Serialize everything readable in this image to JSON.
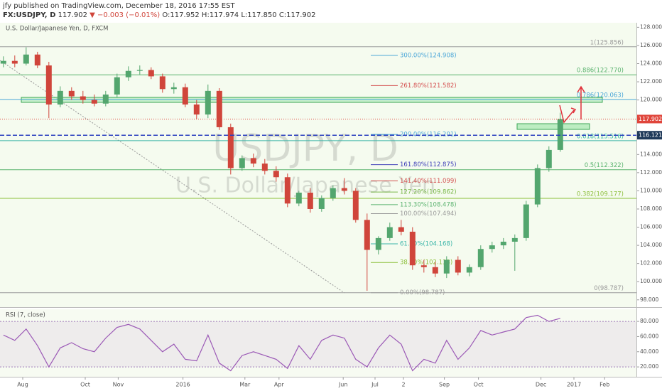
{
  "header": {
    "publisher": "jfy published on TradingView.com, December 18, 2016 17:55 EST",
    "symbol": "FX:USDJPY, D",
    "last": "117.902",
    "change": "▼ −0.003 (−0.01%)",
    "ohlc": "O:117.952 H:117.974 L:117.850 C:117.902"
  },
  "chart_data": [
    {
      "type": "candlestick",
      "title": "U.S. Dollar/Japanese Yen, D, FXCM",
      "watermark": [
        "USDJPY, D",
        "U.S. Dollar/Japanese Yen"
      ],
      "x": [
        0,
        1,
        2,
        3,
        4,
        5,
        6,
        7,
        8,
        9,
        10,
        11,
        12,
        13,
        14,
        15,
        16,
        17,
        18,
        19,
        20,
        21,
        22,
        23,
        24,
        25,
        26,
        27,
        28,
        29,
        30,
        31,
        32,
        33,
        34,
        35,
        36,
        37,
        38,
        39,
        40,
        41,
        42,
        43,
        44,
        45,
        46,
        47,
        48,
        49
      ],
      "open": [
        124.0,
        124.3,
        124.0,
        125.0,
        123.8,
        119.5,
        121.0,
        120.4,
        120.0,
        119.6,
        120.6,
        122.5,
        123.2,
        123.3,
        122.6,
        121.2,
        121.4,
        119.5,
        118.4,
        121.0,
        117.0,
        112.5,
        113.6,
        113.0,
        112.2,
        111.5,
        108.6,
        109.8,
        108.0,
        109.2,
        110.3,
        110.0,
        106.8,
        103.5,
        104.8,
        106.0,
        105.5,
        101.8,
        101.6,
        100.9,
        102.4,
        101.0,
        101.6,
        103.6,
        104.0,
        104.4,
        104.8,
        108.5,
        112.5,
        114.5
      ],
      "high": [
        124.8,
        124.9,
        125.8,
        125.3,
        124.2,
        121.5,
        121.4,
        121.0,
        120.6,
        121.0,
        122.9,
        123.7,
        123.8,
        123.6,
        122.9,
        121.9,
        121.8,
        120.0,
        121.7,
        121.3,
        117.4,
        113.9,
        114.1,
        113.5,
        112.7,
        111.9,
        110.0,
        110.3,
        109.5,
        110.6,
        111.4,
        110.3,
        107.5,
        105.0,
        106.5,
        106.8,
        106.0,
        102.4,
        102.2,
        102.8,
        102.8,
        101.9,
        104.0,
        104.4,
        104.8,
        105.2,
        108.9,
        112.9,
        114.9,
        118.6
      ],
      "low": [
        123.6,
        123.6,
        123.8,
        123.5,
        118.0,
        119.2,
        120.0,
        119.6,
        119.3,
        119.3,
        120.3,
        122.1,
        122.8,
        122.3,
        120.8,
        120.7,
        119.2,
        117.9,
        118.0,
        116.7,
        111.8,
        112.2,
        112.6,
        111.8,
        111.0,
        108.2,
        108.3,
        107.6,
        107.7,
        108.9,
        109.6,
        106.5,
        99.0,
        103.0,
        104.5,
        105.1,
        101.3,
        101.0,
        100.5,
        100.4,
        100.7,
        100.6,
        101.3,
        103.2,
        103.6,
        101.2,
        104.5,
        108.2,
        112.1,
        114.3
      ],
      "close": [
        124.3,
        124.0,
        125.0,
        123.8,
        119.5,
        121.0,
        120.4,
        120.0,
        119.6,
        120.6,
        122.5,
        123.2,
        123.3,
        122.6,
        121.2,
        121.4,
        119.5,
        118.4,
        121.0,
        117.0,
        112.5,
        113.6,
        113.0,
        112.2,
        111.5,
        108.6,
        109.8,
        108.0,
        109.2,
        110.3,
        110.0,
        106.8,
        103.5,
        104.8,
        106.0,
        105.5,
        101.8,
        101.6,
        100.9,
        102.4,
        101.0,
        101.6,
        103.6,
        104.0,
        104.4,
        104.8,
        108.5,
        112.5,
        114.5,
        117.9
      ],
      "up_color": "#53a66e",
      "down_color": "#d0453b",
      "xlim": [
        -0.3,
        55.7
      ],
      "xticks": [
        {
          "value": 1.7,
          "label": "Aug"
        },
        {
          "value": 7.2,
          "label": "Oct"
        },
        {
          "value": 10.1,
          "label": "Nov"
        },
        {
          "value": 15.8,
          "label": "2016"
        },
        {
          "value": 21.25,
          "label": "Mar"
        },
        {
          "value": 24.25,
          "label": "Apr"
        },
        {
          "value": 29.9,
          "label": "Jun"
        },
        {
          "value": 32.7,
          "label": "Jul"
        },
        {
          "value": 35.2,
          "label": "2"
        },
        {
          "value": 38.8,
          "label": "Sep"
        },
        {
          "value": 41.8,
          "label": "Oct"
        },
        {
          "value": 47.3,
          "label": "Dec"
        },
        {
          "value": 50.2,
          "label": "2017"
        },
        {
          "value": 52.9,
          "label": "Feb"
        }
      ],
      "ylim": [
        97.2,
        128.5
      ],
      "yticks": [
        {
          "value": 98,
          "label": "98.000"
        },
        {
          "value": 100,
          "label": "100.000"
        },
        {
          "value": 102,
          "label": "102.000"
        },
        {
          "value": 104,
          "label": "104.000"
        },
        {
          "value": 106,
          "label": "106.000"
        },
        {
          "value": 108,
          "label": "108.000"
        },
        {
          "value": 110,
          "label": "110.000"
        },
        {
          "value": 112,
          "label": "112.000"
        },
        {
          "value": 114,
          "label": "114.000"
        },
        {
          "value": 116,
          "label": "116.000"
        },
        {
          "value": 118,
          "label": "118.000"
        },
        {
          "value": 120,
          "label": "120.000"
        },
        {
          "value": 122,
          "label": "122.000"
        },
        {
          "value": 124,
          "label": "124.000"
        },
        {
          "value": 126,
          "label": "126.000"
        },
        {
          "value": 128,
          "label": "128.000"
        }
      ],
      "retracement": [
        {
          "label": "1(125.856)",
          "value": 125.856,
          "color": "#9a9a9a"
        },
        {
          "label": "0.886(122.770)",
          "value": 122.77,
          "color": "#5bb36f"
        },
        {
          "label": "0.786(120.063)",
          "value": 120.063,
          "color": "#4aa6d8"
        },
        {
          "label": "0.618(115.516)",
          "value": 115.516,
          "color": "#3ab5a8"
        },
        {
          "label": "0.5(112.322)",
          "value": 112.322,
          "color": "#5bb36f"
        },
        {
          "label": "0.382(109.177)",
          "value": 109.177,
          "color": "#8cbf3a"
        },
        {
          "label": "0(98.787)",
          "value": 98.787,
          "color": "#9a9a9a"
        }
      ],
      "extension": [
        {
          "label": "300.00%(124.908)",
          "value": 124.908,
          "color": "#4aa6d8"
        },
        {
          "label": "261.80%(121.582)",
          "value": 121.582,
          "color": "#d45050"
        },
        {
          "label": "200.00%(116.201)",
          "value": 116.201,
          "color": "#4aa6d8"
        },
        {
          "label": "161.80%(112.875)",
          "value": 112.875,
          "color": "#3d3db8"
        },
        {
          "label": "141.40%(111.099)",
          "value": 111.099,
          "color": "#d45050"
        },
        {
          "label": "127.20%(109.862)",
          "value": 109.862,
          "color": "#7ab84a"
        },
        {
          "label": "113.30%(108.478)",
          "value": 108.478,
          "color": "#5bb36f"
        },
        {
          "label": "100.00%(107.494)",
          "value": 107.494,
          "color": "#9a9a9a"
        },
        {
          "label": "61.80%(104.168)",
          "value": 104.168,
          "color": "#3ab5a8"
        },
        {
          "label": "38.20%(102.113)",
          "value": 102.113,
          "color": "#8cbf3a"
        },
        {
          "label": "0.00%(98.787)",
          "value": 98.787,
          "color": "#9a9a9a"
        }
      ],
      "price_labels": [
        {
          "value": 117.902,
          "label": "117.902",
          "color": "#e0453b"
        },
        {
          "value": 116.121,
          "label": "116.121",
          "color": "#1f3a5a"
        }
      ]
    },
    {
      "type": "line",
      "title": "RSI (7, close)",
      "color": "#9b59b6",
      "x": [
        0,
        1,
        2,
        3,
        4,
        5,
        6,
        7,
        8,
        9,
        10,
        11,
        12,
        13,
        14,
        15,
        16,
        17,
        18,
        19,
        20,
        21,
        22,
        23,
        24,
        25,
        26,
        27,
        28,
        29,
        30,
        31,
        32,
        33,
        34,
        35,
        36,
        37,
        38,
        39,
        40,
        41,
        42,
        43,
        44,
        45,
        46,
        47,
        48,
        49
      ],
      "values": [
        62,
        55,
        70,
        48,
        20,
        45,
        52,
        44,
        40,
        58,
        72,
        76,
        70,
        55,
        40,
        50,
        30,
        28,
        62,
        25,
        15,
        35,
        40,
        35,
        30,
        18,
        48,
        30,
        55,
        62,
        58,
        30,
        20,
        45,
        62,
        50,
        15,
        30,
        25,
        55,
        30,
        45,
        68,
        62,
        66,
        70,
        85,
        88,
        80,
        84
      ],
      "xlim": [
        -0.3,
        55.7
      ],
      "ylim": [
        7,
        96
      ],
      "yticks": [
        {
          "value": 20,
          "label": "20.000"
        },
        {
          "value": 40,
          "label": "40.000"
        },
        {
          "value": 60,
          "label": "60.000"
        },
        {
          "value": 80,
          "label": "80.000"
        }
      ]
    }
  ]
}
